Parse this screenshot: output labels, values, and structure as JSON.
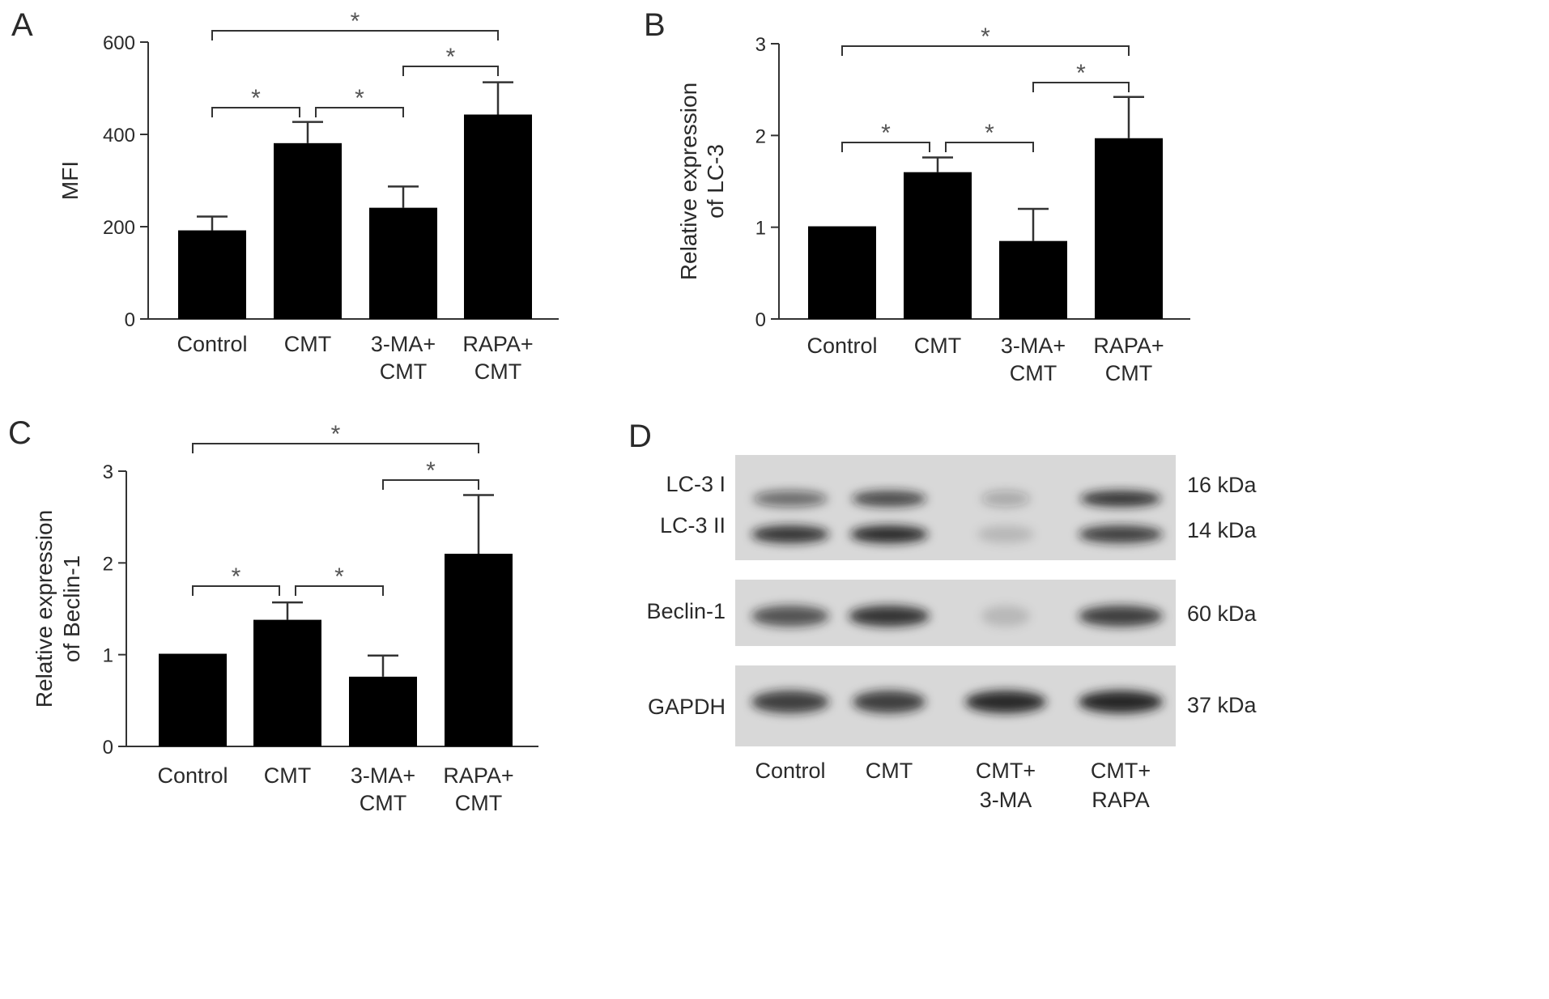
{
  "colors": {
    "bar": "#000000",
    "axis": "#333333",
    "text": "#2a2a2a",
    "bracket": "#333333",
    "blot_bg": "#d8d8d8",
    "band": "#1a1a1a"
  },
  "chart_data": [
    {
      "panel": "A",
      "type": "bar",
      "categories": [
        "Control",
        "CMT",
        "3-MA+\nCMT",
        "RAPA+\nCMT"
      ],
      "values": [
        192,
        381,
        241,
        443
      ],
      "errors": [
        30,
        46,
        46,
        70
      ],
      "ylabel": [
        "MFI"
      ],
      "ylim": [
        0,
        600
      ],
      "yticks": [
        0,
        200,
        400,
        600
      ],
      "grid": false,
      "significance": [
        {
          "from": 0,
          "to": 3,
          "label": "*"
        },
        {
          "from": 2,
          "to": 3,
          "label": "*"
        },
        {
          "from": 0,
          "to": 1,
          "label": "*"
        },
        {
          "from": 1,
          "to": 2,
          "label": "*"
        }
      ]
    },
    {
      "panel": "B",
      "type": "bar",
      "categories": [
        "Control",
        "CMT",
        "3-MA+\nCMT",
        "RAPA+\nCMT"
      ],
      "values": [
        1.01,
        1.6,
        0.85,
        1.97
      ],
      "errors": [
        0,
        0.16,
        0.35,
        0.45
      ],
      "ylabel": [
        "Relative expression",
        "of LC-3"
      ],
      "ylim": [
        0,
        3
      ],
      "yticks": [
        0,
        1,
        2,
        3
      ],
      "grid": false,
      "significance": [
        {
          "from": 0,
          "to": 3,
          "label": "*"
        },
        {
          "from": 2,
          "to": 3,
          "label": "*"
        },
        {
          "from": 0,
          "to": 1,
          "label": "*"
        },
        {
          "from": 1,
          "to": 2,
          "label": "*"
        }
      ]
    },
    {
      "panel": "C",
      "type": "bar",
      "categories": [
        "Control",
        "CMT",
        "3-MA+\nCMT",
        "RAPA+\nCMT"
      ],
      "values": [
        1.01,
        1.38,
        0.76,
        2.1
      ],
      "errors": [
        0,
        0.19,
        0.23,
        0.64
      ],
      "ylabel": [
        "Relative expression",
        "of Beclin-1"
      ],
      "ylim": [
        0,
        3
      ],
      "yticks": [
        0,
        1,
        2,
        3
      ],
      "grid": false,
      "significance": [
        {
          "from": 0,
          "to": 3,
          "label": "*"
        },
        {
          "from": 2,
          "to": 3,
          "label": "*"
        },
        {
          "from": 0,
          "to": 1,
          "label": "*"
        },
        {
          "from": 1,
          "to": 2,
          "label": "*"
        }
      ]
    }
  ],
  "blot": {
    "panel": "D",
    "lanes": [
      "Control",
      "CMT",
      "CMT+\n3-MA",
      "CMT+\nRAPA"
    ],
    "rows": [
      {
        "labels": [
          "LC-3 I",
          "LC-3 II"
        ],
        "sizes": [
          "16 kDa",
          "14 kDa"
        ]
      },
      {
        "labels": [
          "Beclin-1"
        ],
        "sizes": [
          "60 kDa"
        ]
      },
      {
        "labels": [
          "GAPDH"
        ],
        "sizes": [
          "37 kDa"
        ]
      }
    ]
  }
}
